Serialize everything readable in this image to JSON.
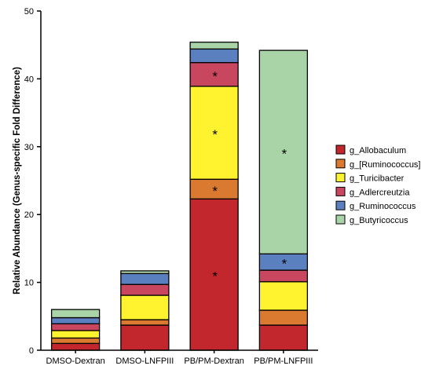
{
  "chart_data": {
    "type": "bar",
    "stacked": true,
    "categories": [
      "DMSO-Dextran",
      "DMSO-LNFPIII",
      "PB/PM-Dextran",
      "PB/PM-LNFPIII"
    ],
    "ylabel": "Relative Abundance (Genus-specific  Fold Difference)",
    "xlabel": "",
    "title": "",
    "ylim": [
      0,
      50
    ],
    "yticks": [
      0,
      10,
      20,
      30,
      40,
      50
    ],
    "legend_position": "right",
    "series": [
      {
        "name": "g_Allobaculum",
        "color": "#C1272D",
        "values": [
          1.0,
          3.7,
          22.3,
          3.7
        ]
      },
      {
        "name": "g_[Ruminococcus]",
        "color": "#D97A30",
        "values": [
          0.8,
          0.8,
          2.9,
          2.2
        ]
      },
      {
        "name": "g_Turicibacter",
        "color": "#FFF22E",
        "values": [
          1.1,
          3.6,
          13.7,
          4.2
        ]
      },
      {
        "name": "g_Adlercreutzia",
        "color": "#C9475E",
        "values": [
          1.0,
          1.6,
          3.5,
          1.7
        ]
      },
      {
        "name": "g_Ruminococcus",
        "color": "#5A80C0",
        "values": [
          0.9,
          1.6,
          2.0,
          2.4
        ]
      },
      {
        "name": "g_Butyricoccus",
        "color": "#A9D4A8",
        "values": [
          1.2,
          0.4,
          1.0,
          30.0
        ]
      }
    ],
    "annotations": [
      {
        "text": "*",
        "category": "PB/PM-Dextran",
        "series": "g_Allobaculum"
      },
      {
        "text": "*",
        "category": "PB/PM-Dextran",
        "series": "g_[Ruminococcus]"
      },
      {
        "text": "*",
        "category": "PB/PM-Dextran",
        "series": "g_Turicibacter"
      },
      {
        "text": "*",
        "category": "PB/PM-Dextran",
        "series": "g_Adlercreutzia"
      },
      {
        "text": "*",
        "category": "PB/PM-LNFPIII",
        "series": "g_Ruminococcus"
      },
      {
        "text": "*",
        "category": "PB/PM-LNFPIII",
        "series": "g_Butyricoccus"
      }
    ]
  }
}
